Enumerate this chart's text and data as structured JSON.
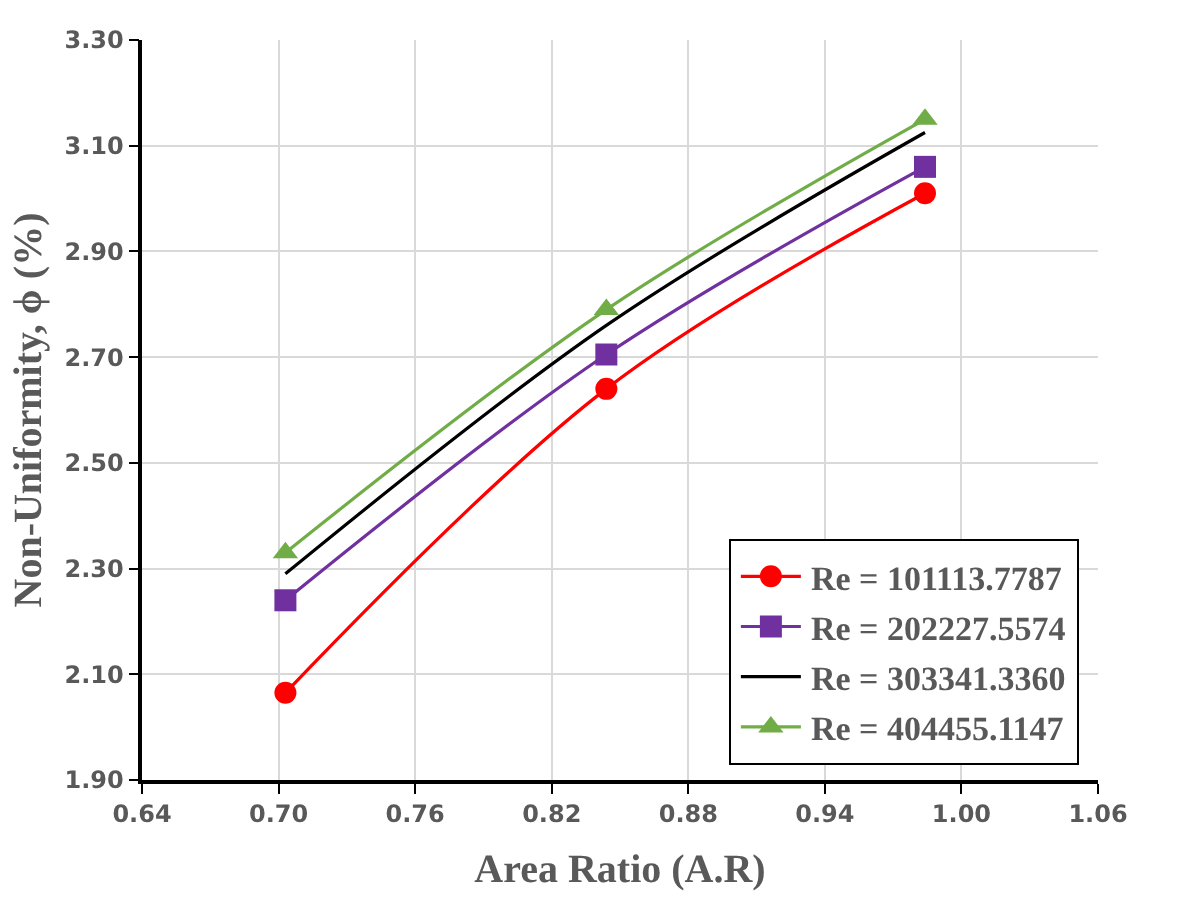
{
  "chart_data": {
    "type": "line",
    "xlabel": "Area Ratio (A.R)",
    "ylabel": "Non-Uniformity, ϕ (%)",
    "x": [
      0.703,
      0.844,
      0.984
    ],
    "series": [
      {
        "name": "Re = 101113.7787",
        "color": "#ff0000",
        "marker": "circle",
        "values": [
          2.065,
          2.64,
          3.01
        ]
      },
      {
        "name": "Re = 202227.5574",
        "color": "#7030a0",
        "marker": "square",
        "values": [
          2.24,
          2.705,
          3.06
        ]
      },
      {
        "name": "Re = 303341.3360",
        "color": "#000000",
        "marker": "none",
        "values": [
          2.29,
          2.76,
          3.125
        ]
      },
      {
        "name": "Re = 404455.1147",
        "color": "#70ad47",
        "marker": "triangle",
        "values": [
          2.33,
          2.79,
          3.15
        ]
      }
    ],
    "xlim": [
      0.64,
      1.06
    ],
    "xticks": [
      {
        "value": 0.64,
        "label": "0.64"
      },
      {
        "value": 0.7,
        "label": "0.70"
      },
      {
        "value": 0.76,
        "label": "0.76"
      },
      {
        "value": 0.82,
        "label": "0.82"
      },
      {
        "value": 0.88,
        "label": "0.88"
      },
      {
        "value": 0.94,
        "label": "0.94"
      },
      {
        "value": 1.0,
        "label": "1.00"
      },
      {
        "value": 1.06,
        "label": "1.06"
      }
    ],
    "ylim": [
      1.9,
      3.3
    ],
    "yticks": [
      {
        "value": 1.9,
        "label": "1.90"
      },
      {
        "value": 2.1,
        "label": "2.10"
      },
      {
        "value": 2.3,
        "label": "2.30"
      },
      {
        "value": 2.5,
        "label": "2.50"
      },
      {
        "value": 2.7,
        "label": "2.70"
      },
      {
        "value": 2.9,
        "label": "2.90"
      },
      {
        "value": 3.1,
        "label": "3.10"
      },
      {
        "value": 3.3,
        "label": "3.30"
      }
    ],
    "grid": true,
    "legend": "bottom right",
    "line_style": "solid"
  }
}
